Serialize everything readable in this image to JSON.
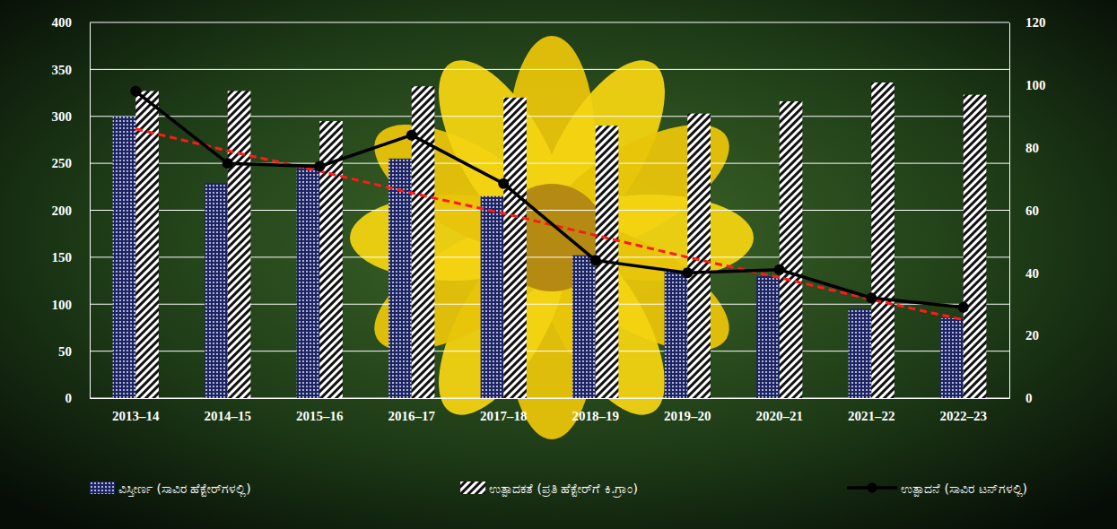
{
  "chart_data": {
    "type": "bar",
    "categories": [
      "2013–14",
      "2014–15",
      "2015–16",
      "2016–17",
      "2017–18",
      "2018–19",
      "2019–20",
      "2020–21",
      "2021–22",
      "2022–23"
    ],
    "series": [
      {
        "name": "ವಿಸ್ತೀರ್ಣ (ಸಾವಿರ ಹೆಕ್ಟೇರ್‌ಗಳಲ್ಲಿ)",
        "type": "bar",
        "color": "#1c2466",
        "values": [
          300,
          229,
          245,
          255,
          215,
          152,
          135,
          130,
          95,
          85
        ]
      },
      {
        "name": "ಉತ್ಪಾದಕತೆ (ಪ್ರತಿ ಹೆಕ್ಟೇರ್‌ಗೆ ಕಿ.ಗ್ರಾಂ)",
        "type": "bar",
        "color": "#ffffff",
        "values": [
          327,
          327,
          295,
          332,
          320,
          290,
          303,
          316,
          336,
          323
        ]
      },
      {
        "name": "ಉತ್ಪಾದನೆ (ಸಾವಿರ ಟನ್‌ಗಳಲ್ಲಿ)",
        "type": "line",
        "axis": "y2",
        "color": "#000000",
        "marker": "circle",
        "line_style": "solid",
        "values": [
          98,
          75,
          74,
          84,
          68.5,
          44,
          40,
          41,
          32,
          29
        ]
      },
      {
        "type": "line",
        "axis": "y2",
        "color": "#ff1a1a",
        "line_style": "dashed",
        "values": [
          86,
          79,
          72.5,
          65.5,
          59,
          52,
          45,
          38.5,
          31.5,
          25
        ]
      }
    ],
    "ylim": [
      0,
      400
    ],
    "yticks": [
      0,
      50,
      100,
      150,
      200,
      250,
      300,
      350,
      400
    ],
    "y2lim": [
      0,
      120
    ],
    "y2ticks": [
      0,
      20,
      40,
      60,
      80,
      100,
      120
    ],
    "grid": true,
    "legend": "bottom"
  }
}
